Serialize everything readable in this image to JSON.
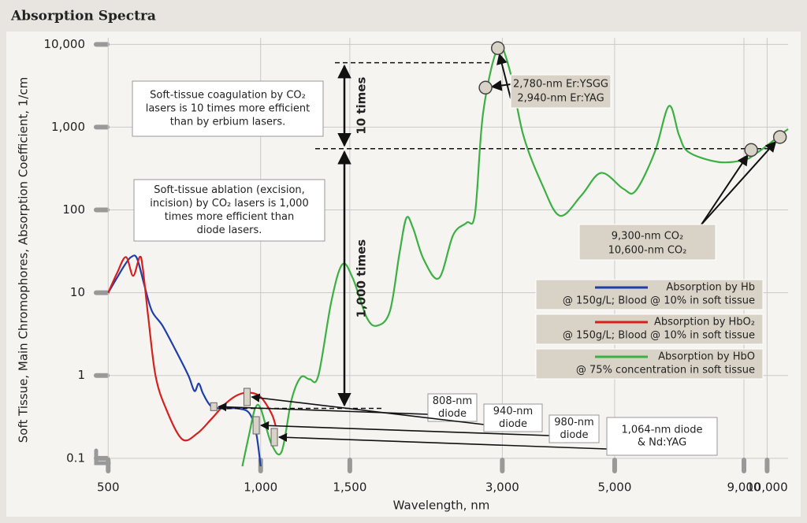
{
  "chart_data": {
    "type": "line",
    "title": "Absorption Spectra",
    "x_label": "Wavelength, nm",
    "y_label": "Soft Tissue, Main Chromophores, Absorption Coefficient, 1/cm",
    "x_log": true,
    "y_log": true,
    "grid": true,
    "xlim": [
      470,
      11000
    ],
    "ylim": [
      0.08,
      12000
    ],
    "xticks": [
      500,
      {
        "value": 1000,
        "label": "1,000"
      },
      {
        "value": 1500,
        "label": "1,500"
      },
      {
        "value": 3000,
        "label": "3,000"
      },
      {
        "value": 5000,
        "label": "5,000"
      },
      {
        "value": 9000,
        "label": "9,000"
      },
      {
        "value": 10000,
        "label": "10,000"
      }
    ],
    "yticks": [
      0.1,
      1,
      10,
      100,
      {
        "value": 1000,
        "label": "1,000"
      },
      {
        "value": 10000,
        "label": "10,000"
      }
    ],
    "series": [
      {
        "name": "Absorption by Hb",
        "note": "@ 150g/L; Blood @ 10% in soft tissue",
        "color": "#1f3fa8",
        "x": [
          500,
          520,
          540,
          555,
          570,
          590,
          610,
          640,
          680,
          720,
          740,
          755,
          770,
          800,
          850,
          900,
          950,
          980,
          1000
        ],
        "values": [
          10,
          15,
          22,
          27,
          26,
          12,
          6,
          4,
          2,
          1,
          0.65,
          0.8,
          0.6,
          0.42,
          0.4,
          0.4,
          0.35,
          0.2,
          0.08
        ]
      },
      {
        "name": "Absorption by HbO₂",
        "note": "@ 150g/L; Blood @ 10% in soft tissue",
        "color": "#d62020",
        "x": [
          500,
          520,
          542,
          560,
          577,
          585,
          600,
          620,
          650,
          700,
          750,
          800,
          850,
          900,
          950,
          1000,
          1050,
          1070
        ],
        "values": [
          10,
          17,
          27,
          16,
          27,
          20,
          5,
          1,
          0.4,
          0.17,
          0.2,
          0.3,
          0.45,
          0.58,
          0.62,
          0.55,
          0.35,
          0.25
        ]
      },
      {
        "name": "Absorption by HbO",
        "note": "@ 75% concentration in soft tissue",
        "color": "#3cb043",
        "x": [
          920,
          950,
          975,
          1000,
          1050,
          1100,
          1150,
          1200,
          1250,
          1300,
          1380,
          1450,
          1520,
          1620,
          1700,
          1800,
          1880,
          1940,
          2000,
          2100,
          2250,
          2400,
          2550,
          2650,
          2750,
          2940,
          3100,
          3300,
          3600,
          3900,
          4300,
          4700,
          5200,
          5500,
          6000,
          6400,
          6700,
          7000,
          8000,
          9000,
          9500,
          10000,
          10600,
          11000
        ],
        "values": [
          0.08,
          0.2,
          0.4,
          0.4,
          0.15,
          0.12,
          0.5,
          0.95,
          0.9,
          1,
          8,
          22,
          15,
          5,
          4,
          6,
          30,
          80,
          60,
          25,
          15,
          50,
          70,
          90,
          1500,
          9000,
          5000,
          800,
          200,
          85,
          150,
          280,
          180,
          170,
          500,
          1800,
          800,
          500,
          380,
          400,
          480,
          600,
          800,
          950
        ]
      }
    ],
    "annotations": [
      {
        "lines": [
          "Soft-tissue coagulation by CO₂",
          "lasers is 10 times more efficient",
          "than by erbium lasers."
        ]
      },
      {
        "lines": [
          "Soft-tissue ablation (excision,",
          "incision) by CO₂ lasers is 1,000",
          "times more efficient than",
          "diode lasers."
        ]
      }
    ],
    "ratios": [
      {
        "label": "10 times",
        "from": 550,
        "to": 6000
      },
      {
        "label": "1,000 times",
        "from": 0.4,
        "to": 550
      }
    ],
    "laser_callouts": [
      {
        "points": [
          {
            "label": "2,780-nm Er:YSGG",
            "x": 2780,
            "value": 3000
          },
          {
            "label": "2,940-nm Er:YAG",
            "x": 2940,
            "value": 9000
          }
        ]
      },
      {
        "points": [
          {
            "label": "9,300-nm CO₂",
            "x": 9300,
            "value": 530
          },
          {
            "label": "10,600-nm CO₂",
            "x": 10600,
            "value": 760
          }
        ]
      }
    ],
    "diode_markers": [
      {
        "lines": [
          "808-nm",
          "diode"
        ],
        "x": 808,
        "value": 0.42
      },
      {
        "lines": [
          "940-nm",
          "diode"
        ],
        "x": 940,
        "value": 0.55
      },
      {
        "lines": [
          "980-nm",
          "diode"
        ],
        "x": 980,
        "value": 0.25
      },
      {
        "lines": [
          "1,064-nm diode",
          "& Nd:YAG"
        ],
        "x": 1064,
        "value": 0.18
      }
    ]
  }
}
